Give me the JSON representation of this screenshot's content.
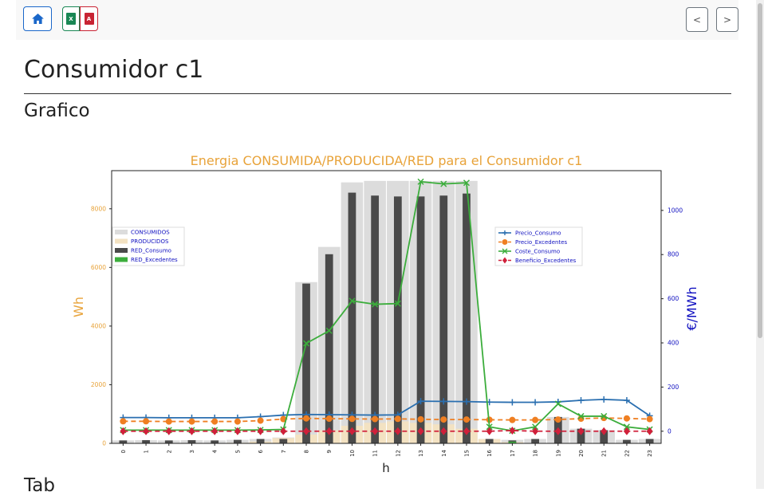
{
  "toolbar": {
    "home_icon": "house-icon",
    "excel_icon": "file-excel-icon",
    "excel_glyph": "X",
    "pdf_icon": "file-pdf-icon",
    "pdf_glyph": "A",
    "prev_label": "<",
    "next_label": ">"
  },
  "page_title": "Consumidor c1",
  "section_title": "Grafico",
  "next_section_title": "Tab",
  "colors": {
    "orange": "#e8a33a",
    "blue": "#1010c0",
    "green": "#3cad3c",
    "red": "#d0203a",
    "navy": "#2a6fb0",
    "legend_text": "#1010c0"
  },
  "chart_data": {
    "type": "bar",
    "title": "Energia CONSUMIDA/PRODUCIDA/RED para el Consumidor c1",
    "xlabel": "h",
    "ylabel_left": "Wh",
    "ylabel_right": "€/MWh",
    "ylim_left": [
      0,
      9300
    ],
    "ylim_right": [
      -55,
      1180
    ],
    "yticks_left": [
      0,
      2000,
      4000,
      6000,
      8000
    ],
    "yticks_right": [
      0,
      200,
      400,
      600,
      800,
      1000
    ],
    "categories": [
      "0",
      "1",
      "2",
      "3",
      "4",
      "5",
      "6",
      "7",
      "8",
      "9",
      "10",
      "11",
      "12",
      "13",
      "14",
      "15",
      "16",
      "17",
      "18",
      "19",
      "20",
      "21",
      "22",
      "23"
    ],
    "bar_series": [
      {
        "name": "CONSUMIDOS",
        "color": "#dcdcdc",
        "values": [
          100,
          110,
          100,
          110,
          100,
          120,
          150,
          200,
          5500,
          6700,
          8900,
          8950,
          8950,
          8950,
          8950,
          8950,
          150,
          120,
          150,
          900,
          500,
          450,
          120,
          150
        ]
      },
      {
        "name": "PRODUCIDOS",
        "color": "#f3e2c2",
        "values": [
          0,
          0,
          0,
          0,
          0,
          20,
          60,
          180,
          300,
          450,
          600,
          700,
          750,
          700,
          650,
          500,
          150,
          40,
          0,
          0,
          0,
          0,
          0,
          0
        ]
      },
      {
        "name": "RED_Consumo",
        "color": "#4a4a4a",
        "values": [
          100,
          110,
          100,
          110,
          100,
          120,
          150,
          150,
          5450,
          6450,
          8550,
          8450,
          8420,
          8420,
          8450,
          8520,
          150,
          100,
          150,
          900,
          500,
          450,
          120,
          150
        ]
      },
      {
        "name": "RED_Excedentes",
        "color": "#3cad3c",
        "values": [
          0,
          0,
          0,
          0,
          0,
          0,
          0,
          0,
          0,
          0,
          0,
          0,
          0,
          0,
          0,
          0,
          0,
          60,
          0,
          0,
          0,
          0,
          0,
          0
        ]
      }
    ],
    "line_series": [
      {
        "name": "Precio_Consumo",
        "color": "#2a6fb0",
        "marker": "plus",
        "values": [
          62,
          62,
          61,
          61,
          61,
          61,
          66,
          73,
          76,
          75,
          74,
          73,
          74,
          136,
          135,
          134,
          132,
          131,
          131,
          133,
          140,
          144,
          140,
          70
        ]
      },
      {
        "name": "Precio_Excedentes",
        "color": "#ef7f22",
        "marker": "circle",
        "values": [
          45,
          45,
          44,
          44,
          44,
          44,
          48,
          55,
          58,
          57,
          56,
          55,
          56,
          54,
          53,
          53,
          52,
          51,
          51,
          53,
          57,
          60,
          58,
          55
        ]
      },
      {
        "name": "Coste_Consumo",
        "color": "#3cad3c",
        "marker": "x",
        "values": [
          5,
          5,
          5,
          5,
          5,
          5,
          6,
          8,
          398,
          455,
          590,
          575,
          578,
          1130,
          1120,
          1125,
          20,
          2,
          20,
          124,
          68,
          68,
          20,
          8
        ]
      },
      {
        "name": "Beneficio_Excedentes",
        "color": "#d0203a",
        "marker": "diamond",
        "values": [
          0,
          0,
          0,
          0,
          0,
          0,
          0,
          0,
          0,
          0,
          0,
          0,
          0,
          0,
          0,
          0,
          0,
          3,
          0,
          0,
          0,
          0,
          0,
          0
        ]
      }
    ]
  }
}
